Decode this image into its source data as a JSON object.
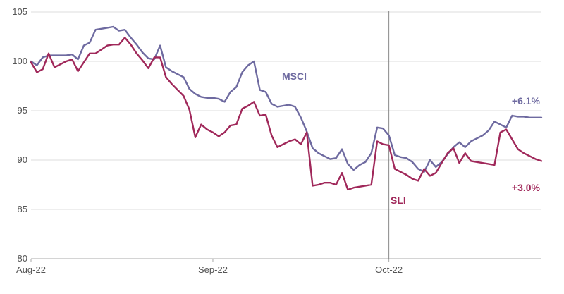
{
  "chart_data": {
    "type": "line",
    "title": "",
    "xlabel": "",
    "ylabel": "",
    "ylim": [
      80,
      105
    ],
    "yticks": [
      80,
      85,
      90,
      95,
      100,
      105
    ],
    "grid": "horizontal",
    "x_ticks": [
      {
        "label": "Aug-22",
        "at": 0
      },
      {
        "label": "Sep-22",
        "at": 31
      },
      {
        "label": "Oct-22",
        "at": 61
      }
    ],
    "x_range": [
      0,
      87
    ],
    "reference_line_at": 61,
    "colors": {
      "MSCI": "#6e6aa0",
      "SLI": "#a0285a",
      "grid": "#dddddd",
      "axis": "#aaaaaa"
    },
    "series": [
      {
        "name": "MSCI",
        "end_label": "+6.1%",
        "x": [
          0,
          1,
          2,
          3,
          4,
          5,
          6,
          7,
          8,
          9,
          10,
          11,
          12,
          13,
          14,
          15,
          16,
          17,
          18,
          19,
          20,
          21,
          22,
          23,
          24,
          25,
          26,
          27,
          28,
          29,
          30,
          31,
          32,
          33,
          34,
          35,
          36,
          37,
          38,
          39,
          40,
          41,
          42,
          43,
          44,
          45,
          46,
          47,
          48,
          49,
          50,
          51,
          52,
          53,
          54,
          55,
          56,
          57,
          58,
          59,
          60,
          61,
          62,
          63,
          64,
          65,
          66,
          67,
          68,
          69,
          70,
          71,
          72,
          73,
          74,
          75,
          76,
          77,
          78,
          79,
          80,
          81,
          82,
          83,
          84,
          85,
          86,
          87
        ],
        "y": [
          100.0,
          99.6,
          100.4,
          100.6,
          100.6,
          100.6,
          100.6,
          100.7,
          100.2,
          101.6,
          101.9,
          103.2,
          103.3,
          103.4,
          103.5,
          103.1,
          103.2,
          102.4,
          101.7,
          100.9,
          100.3,
          100.2,
          101.6,
          99.4,
          99.0,
          98.7,
          98.4,
          97.2,
          96.7,
          96.4,
          96.3,
          96.3,
          96.2,
          95.9,
          96.9,
          97.4,
          98.9,
          99.6,
          100.0,
          97.1,
          96.9,
          95.7,
          95.4,
          95.5,
          95.6,
          95.4,
          94.3,
          92.9,
          91.2,
          90.7,
          90.4,
          90.1,
          90.2,
          91.1,
          89.6,
          89.0,
          89.5,
          89.8,
          90.7,
          93.3,
          93.2,
          92.5,
          90.5,
          90.3,
          90.2,
          89.8,
          89.1,
          88.8,
          90.0,
          89.3,
          89.8,
          90.6,
          91.3,
          91.8,
          91.3,
          91.9,
          92.2,
          92.5,
          93.0,
          93.9,
          93.6,
          93.3,
          94.5,
          94.4,
          94.4,
          94.3,
          94.3,
          94.3
        ]
      },
      {
        "name": "SLI",
        "end_label": "+3.0%",
        "x": [
          0,
          1,
          2,
          3,
          4,
          5,
          6,
          7,
          8,
          9,
          10,
          11,
          12,
          13,
          14,
          15,
          16,
          17,
          18,
          19,
          20,
          21,
          22,
          23,
          24,
          25,
          26,
          27,
          28,
          29,
          30,
          31,
          32,
          33,
          34,
          35,
          36,
          37,
          38,
          39,
          40,
          41,
          42,
          43,
          44,
          45,
          46,
          47,
          48,
          49,
          50,
          51,
          52,
          53,
          54,
          55,
          56,
          57,
          58,
          59,
          60,
          61,
          62,
          63,
          64,
          65,
          66,
          67,
          68,
          69,
          70,
          71,
          72,
          73,
          74,
          75,
          76,
          77,
          78,
          79,
          80,
          81,
          82,
          83,
          84,
          85,
          86,
          87
        ],
        "y": [
          99.9,
          98.9,
          99.2,
          100.8,
          99.4,
          99.7,
          100.0,
          100.2,
          99.0,
          99.9,
          100.8,
          100.8,
          101.2,
          101.6,
          101.7,
          101.7,
          102.4,
          101.7,
          100.8,
          100.1,
          99.3,
          100.4,
          100.4,
          98.4,
          97.7,
          97.1,
          96.5,
          95.1,
          92.3,
          93.6,
          93.1,
          92.8,
          92.4,
          92.8,
          93.5,
          93.6,
          95.2,
          95.5,
          95.9,
          94.5,
          94.6,
          92.5,
          91.3,
          91.6,
          91.9,
          92.1,
          91.6,
          92.8,
          87.4,
          87.5,
          87.7,
          87.7,
          87.5,
          88.7,
          87.0,
          87.2,
          87.3,
          87.4,
          87.5,
          91.9,
          91.6,
          91.5,
          89.1,
          88.8,
          88.5,
          88.1,
          87.9,
          89.1,
          88.4,
          88.7,
          89.7,
          90.7,
          91.2,
          89.7,
          90.7,
          89.9,
          89.8,
          89.7,
          89.6,
          89.5,
          92.8,
          93.1,
          92.1,
          91.1,
          90.7,
          90.4,
          90.1,
          89.9
        ]
      }
    ]
  }
}
